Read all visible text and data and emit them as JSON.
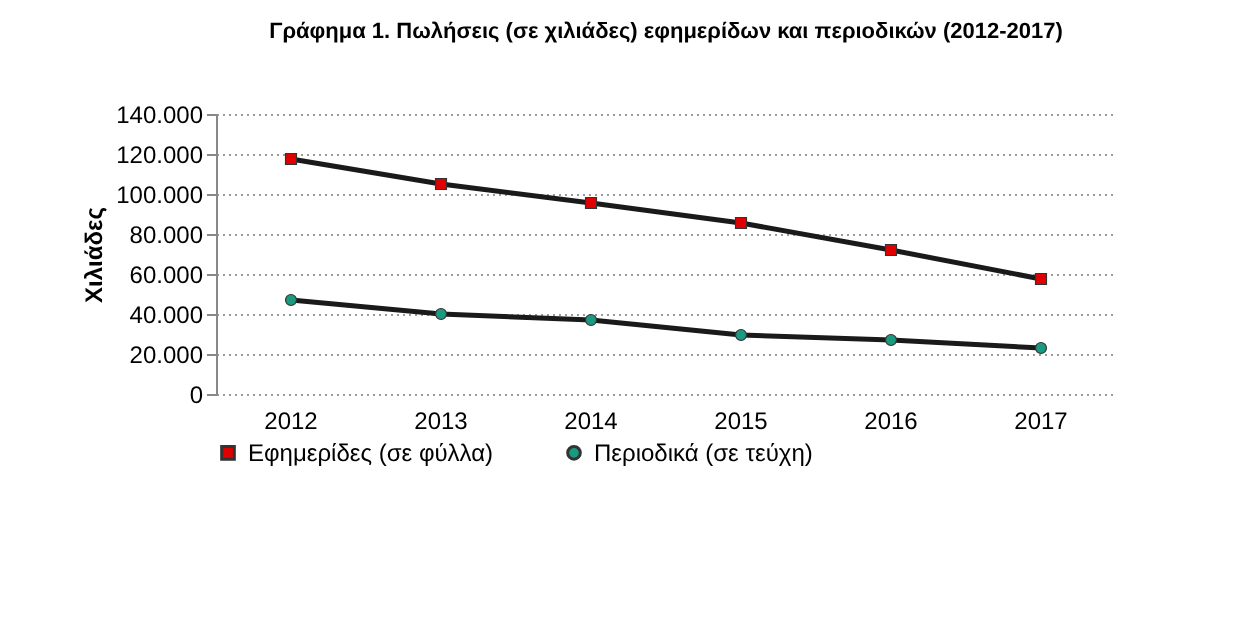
{
  "chart_data": {
    "type": "line",
    "title": "Γράφημα 1. Πωλήσεις (σε χιλιάδες) εφημερίδων και περιοδικών (2012-2017)",
    "ylabel": "Χιλιάδες",
    "categories": [
      "2012",
      "2013",
      "2014",
      "2015",
      "2016",
      "2017"
    ],
    "series": [
      {
        "name": "Εφημερίδες  (σε φύλλα)",
        "color": "#e00000",
        "marker": "square",
        "values": [
          117500,
          105000,
          95500,
          85500,
          72000,
          57500
        ]
      },
      {
        "name": "Περιοδικά  (σε τεύχη)",
        "color": "#1a9a80",
        "marker": "circle",
        "values": [
          47000,
          40000,
          37000,
          29500,
          27000,
          23000
        ]
      }
    ],
    "ylim": [
      0,
      140000
    ],
    "yticks": [
      {
        "value": 0,
        "label": "0"
      },
      {
        "value": 20000,
        "label": "20.000"
      },
      {
        "value": 40000,
        "label": "40.000"
      },
      {
        "value": 60000,
        "label": "60.000"
      },
      {
        "value": 80000,
        "label": "80.000"
      },
      {
        "value": 100000,
        "label": "100.000"
      },
      {
        "value": 120000,
        "label": "120.000"
      },
      {
        "value": 140000,
        "label": "140.000"
      }
    ],
    "grid": "y",
    "legend": "bottom",
    "line_style": "solid"
  }
}
